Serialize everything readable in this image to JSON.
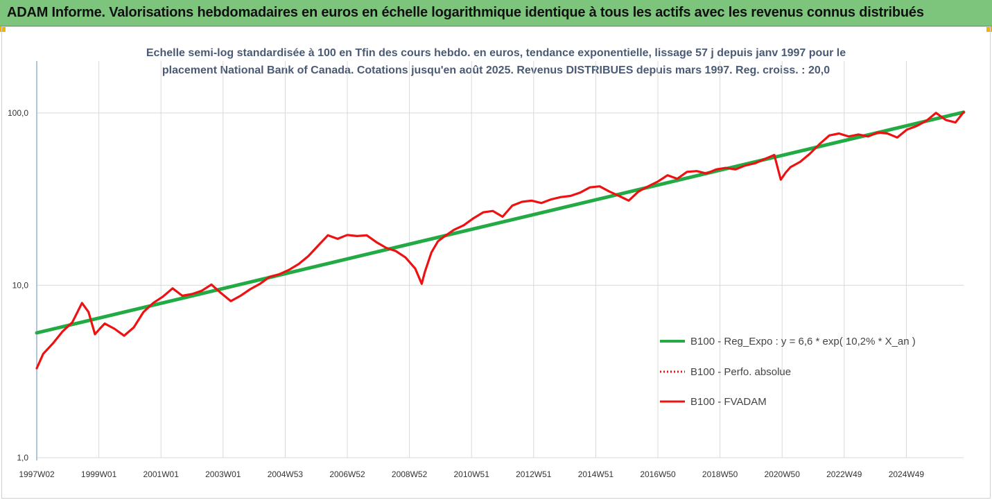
{
  "banner": {
    "title": "ADAM Informe. Valorisations hebdomadaires en euros en échelle logarithmique identique à tous les actifs avec les revenus connus distribués"
  },
  "chart_data": {
    "type": "line",
    "title_line1": "Echelle semi-log standardisée à 100 en Tfin des cours hebdo. en euros, tendance exponentielle, lissage 57 j depuis janv 1997 pour le",
    "title_line2": "placement National Bank of Canada. Cotations jusqu'en août 2025. Revenus DISTRIBUES depuis mars 1997. Reg. croiss. : 20,0",
    "y_scale": "log",
    "ylim": [
      1,
      200
    ],
    "y_ticks": [
      "1,0",
      "10,0",
      "100,0"
    ],
    "x_ticks": [
      "1997W02",
      "1999W01",
      "2001W01",
      "2003W01",
      "2004W53",
      "2006W52",
      "2008W52",
      "2010W51",
      "2012W51",
      "2014W51",
      "2016W50",
      "2018W50",
      "2020W50",
      "2022W49",
      "2024W49"
    ],
    "xlim": [
      1997.0,
      2025.65
    ],
    "grid": "vertical",
    "legend_position": "right",
    "series": [
      {
        "name": "B100 - Reg_Expo : y = 6,6 * exp( 10,2% *  X_an )",
        "color": "#22aa44",
        "style": "solid",
        "x": [
          1997.0,
          2025.65
        ],
        "y": [
          5.3,
          101
        ]
      },
      {
        "name": "B100 - Perfo. absolue",
        "color": "#ee1111",
        "style": "dotted",
        "x": [],
        "y": []
      },
      {
        "name": "B100 - FVADAM",
        "color": "#ee1111",
        "style": "solid",
        "x": [
          1997.0,
          1997.2,
          1997.5,
          1997.8,
          1998.1,
          1998.4,
          1998.6,
          1998.8,
          1998.95,
          1999.1,
          1999.4,
          1999.7,
          2000.0,
          2000.3,
          2000.6,
          2000.9,
          2001.2,
          2001.5,
          2001.8,
          2002.1,
          2002.4,
          2002.7,
          2003.0,
          2003.3,
          2003.6,
          2003.9,
          2004.2,
          2004.5,
          2004.8,
          2005.1,
          2005.4,
          2005.7,
          2006.0,
          2006.3,
          2006.6,
          2006.9,
          2007.2,
          2007.5,
          2007.8,
          2008.1,
          2008.4,
          2008.7,
          2008.9,
          2009.0,
          2009.2,
          2009.4,
          2009.6,
          2009.9,
          2010.2,
          2010.5,
          2010.8,
          2011.1,
          2011.4,
          2011.7,
          2012.0,
          2012.3,
          2012.6,
          2012.9,
          2013.2,
          2013.5,
          2013.8,
          2014.1,
          2014.4,
          2014.7,
          2015.0,
          2015.3,
          2015.6,
          2015.9,
          2016.2,
          2016.5,
          2016.8,
          2017.1,
          2017.4,
          2017.7,
          2018.0,
          2018.3,
          2018.6,
          2018.9,
          2019.2,
          2019.5,
          2019.8,
          2020.0,
          2020.15,
          2020.3,
          2020.6,
          2020.9,
          2021.2,
          2021.5,
          2021.8,
          2022.1,
          2022.4,
          2022.7,
          2023.0,
          2023.3,
          2023.6,
          2023.9,
          2024.2,
          2024.5,
          2024.8,
          2025.1,
          2025.4,
          2025.65
        ],
        "y": [
          3.3,
          4.0,
          4.6,
          5.4,
          6.1,
          7.9,
          7.0,
          5.2,
          5.6,
          6.0,
          5.6,
          5.1,
          5.7,
          7.0,
          7.9,
          8.6,
          9.6,
          8.7,
          8.9,
          9.3,
          10.1,
          9.0,
          8.1,
          8.7,
          9.5,
          10.2,
          11.2,
          11.6,
          12.3,
          13.3,
          14.8,
          17.0,
          19.5,
          18.6,
          19.6,
          19.3,
          19.5,
          17.8,
          16.5,
          15.8,
          14.5,
          12.5,
          10.2,
          12.0,
          15.5,
          18.0,
          19.2,
          21.0,
          22.3,
          24.5,
          26.5,
          27.0,
          25.0,
          29.0,
          30.5,
          31.0,
          30.0,
          31.5,
          32.5,
          33.0,
          34.5,
          37.0,
          37.5,
          35.0,
          33.0,
          31.0,
          35.0,
          37.5,
          40.0,
          43.5,
          41.5,
          45.5,
          46.0,
          44.5,
          47.0,
          48.0,
          47.0,
          49.5,
          51.0,
          54.0,
          57.0,
          41.0,
          45.0,
          48.5,
          52.0,
          58.0,
          66.0,
          74.0,
          76.0,
          73.0,
          75.0,
          73.0,
          77.0,
          76.0,
          72.0,
          80.0,
          84.0,
          90.0,
          100.0,
          91.0,
          88.0,
          101.0
        ]
      }
    ]
  }
}
